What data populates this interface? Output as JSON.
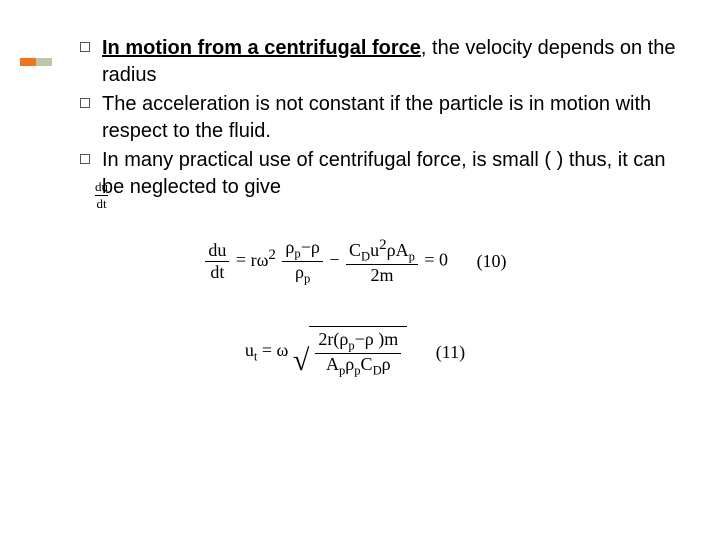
{
  "accent": {
    "color1": "#f37321",
    "color2": "#b9c8a5"
  },
  "bullets": [
    {
      "lead": "In motion from a centrifugal force",
      "rest": ", the velocity depends on the radius"
    },
    {
      "rest": "The acceleration is not constant if the particle is in motion with respect to the fluid."
    },
    {
      "rest": "In many practical use of centrifugal force, is small ( ) thus, it can be neglected to give"
    }
  ],
  "inline_frac": {
    "top": "du",
    "bot": "dt"
  },
  "eq10": {
    "lhs_top": "du",
    "lhs_bot": "dt",
    "rhs1": "rω",
    "rhs1_exp": "2",
    "rhs2_top_a": "ρ",
    "rhs2_top_a_sub": "p",
    "rhs2_top_b": "−ρ",
    "rhs2_bot_a": "ρ",
    "rhs2_bot_a_sub": "p",
    "rhs3_top_a": "C",
    "rhs3_top_a_sub": "D",
    "rhs3_top_b": "u",
    "rhs3_top_b_exp": "2",
    "rhs3_top_c": "ρA",
    "rhs3_top_c_sub": "p",
    "rhs3_bot": "2m",
    "eq_zero": " = 0",
    "num": "(10)"
  },
  "eq11": {
    "lhs_a": "u",
    "lhs_a_sub": "t",
    "eq": " = ",
    "omega": "ω",
    "rad_top_a": "2r(ρ",
    "rad_top_a_sub": "p",
    "rad_top_b": "−ρ  )m",
    "rad_bot_a": "A",
    "rad_bot_a_sub": "p",
    "rad_bot_b": "ρ",
    "rad_bot_b_sub": "p",
    "rad_bot_c": "C",
    "rad_bot_c_sub": "D",
    "rad_bot_d": "ρ",
    "num": "(11)"
  },
  "style": {
    "text_color": "#000000",
    "body_fontsize": 20,
    "math_fontsize": 18
  }
}
